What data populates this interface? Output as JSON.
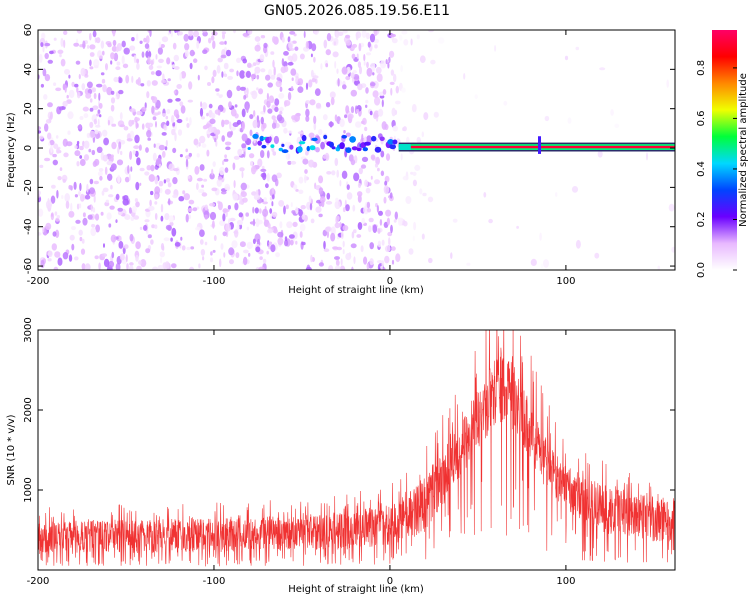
{
  "figure_title": "GN05.2026.085.19.56.E11",
  "chart_data": [
    {
      "type": "heatmap",
      "title": "GN05.2026.085.19.56.E11",
      "xlabel": "Height of straight line (km)",
      "ylabel": "Frequency (Hz)",
      "xlim": [
        -200,
        162
      ],
      "ylim": [
        -62,
        60
      ],
      "xticks": [
        "-200",
        "-100",
        "0",
        "100"
      ],
      "yticks": [
        "60",
        "40",
        "20",
        "0",
        "-20",
        "-40",
        "-60"
      ],
      "colorbar": {
        "label": "Normalized spectral amplitude",
        "range": [
          0.0,
          0.95
        ],
        "ticks": [
          "0.0",
          "0.2",
          "0.4",
          "0.6",
          "0.8"
        ],
        "colors": [
          "#ffffff",
          "#e8b8ff",
          "#6a00ff",
          "#0044ff",
          "#00d8ff",
          "#00ff3a",
          "#f0ff00",
          "#ff8800",
          "#ff0000",
          "#ff0066"
        ]
      },
      "features": [
        {
          "name": "noise field",
          "x_range": [
            -200,
            5
          ],
          "freq_range": [
            -62,
            60
          ],
          "amplitude": 0.1
        },
        {
          "name": "diffuse fade",
          "x_range": [
            5,
            162
          ],
          "freq_range": [
            -62,
            60
          ],
          "amplitude": 0.04
        },
        {
          "name": "emerging carrier",
          "x_range": [
            -80,
            5
          ],
          "freq_center": 2,
          "amplitude": 0.25
        },
        {
          "name": "stable carrier",
          "x_range": [
            5,
            162
          ],
          "freq_center": 0.5,
          "freq_width": 3,
          "amplitude": 0.9
        },
        {
          "name": "spike",
          "x": 85,
          "freq_range": [
            -3,
            6
          ],
          "amplitude": 0.25
        }
      ]
    },
    {
      "type": "line",
      "xlabel": "Height of straight line (km)",
      "ylabel": "SNR (10 * v/v)",
      "xlim": [
        -200,
        162
      ],
      "ylim": [
        0,
        3000
      ],
      "xticks": [
        "-200",
        "-100",
        "0",
        "100"
      ],
      "yticks": [
        "3000",
        "2000",
        "1000"
      ],
      "color": "#f03232",
      "series": [
        {
          "name": "SNR envelope",
          "x": [
            -200,
            -180,
            -160,
            -140,
            -120,
            -100,
            -80,
            -60,
            -40,
            -20,
            0,
            10,
            20,
            30,
            40,
            50,
            60,
            65,
            70,
            80,
            90,
            100,
            110,
            120,
            130,
            140,
            150,
            162
          ],
          "base": [
            200,
            200,
            210,
            210,
            220,
            220,
            230,
            240,
            250,
            260,
            300,
            350,
            480,
            800,
            1150,
            1500,
            1800,
            1850,
            1750,
            1350,
            950,
            750,
            580,
            480,
            400,
            380,
            360,
            350
          ],
          "top": [
            620,
            620,
            630,
            640,
            650,
            650,
            660,
            680,
            700,
            750,
            820,
            950,
            1200,
            1500,
            1850,
            2250,
            2650,
            2720,
            2600,
            2100,
            1600,
            1300,
            1150,
            1080,
            1000,
            950,
            920,
            900
          ]
        }
      ]
    }
  ]
}
